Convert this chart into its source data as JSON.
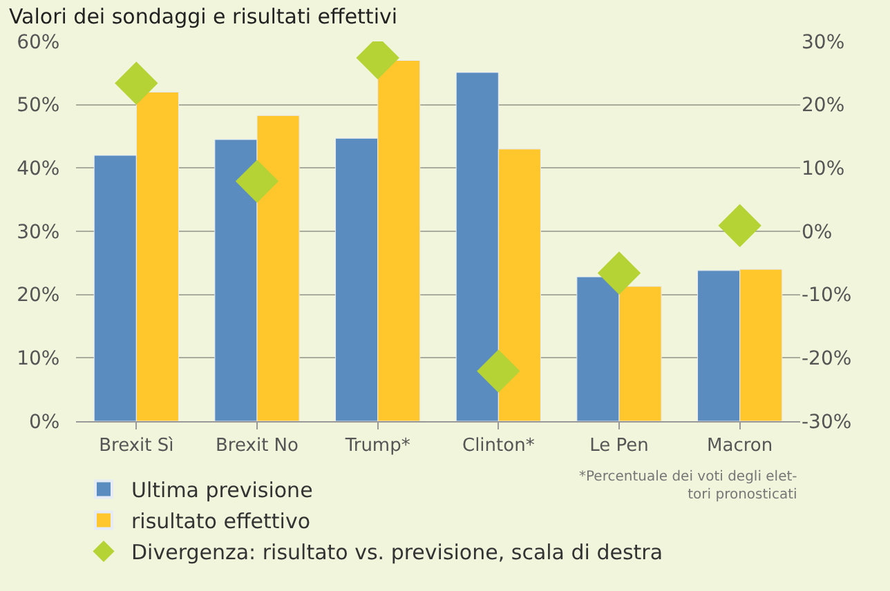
{
  "chart_data": {
    "type": "bar",
    "title": "Valori dei sondaggi e risultati effettivi",
    "categories": [
      "Brexit Sì",
      "Brexit No",
      "Trump*",
      "Clinton*",
      "Le Pen",
      "Macron"
    ],
    "series": [
      {
        "name": "Ultima previsione",
        "color": "#5b8cc0",
        "values": [
          42,
          44.5,
          44.7,
          55.1,
          22.8,
          23.8
        ]
      },
      {
        "name": "risultato effettivo",
        "color": "#ffc72c",
        "values": [
          52,
          48.3,
          57,
          43,
          21.3,
          24
        ]
      },
      {
        "name": "Divergenza: risultato vs. previsione, scala di destra",
        "type": "scatter",
        "axis": "y2",
        "marker": "diamond",
        "color": "#b5d334",
        "values": [
          23.4,
          7.9,
          27.4,
          -22.1,
          -6.6,
          0.9
        ]
      }
    ],
    "ylim": [
      0,
      60
    ],
    "yticks": [
      {
        "value": 0,
        "label": "0%"
      },
      {
        "value": 10,
        "label": "10%"
      },
      {
        "value": 20,
        "label": "20%"
      },
      {
        "value": 30,
        "label": "30%"
      },
      {
        "value": 40,
        "label": "40%"
      },
      {
        "value": 50,
        "label": "50%"
      },
      {
        "value": 60,
        "label": "60%"
      }
    ],
    "y2lim": [
      -30,
      30
    ],
    "y2ticks": [
      {
        "value": -30,
        "label": "-30%"
      },
      {
        "value": -20,
        "label": "-20%"
      },
      {
        "value": -10,
        "label": "-10%"
      },
      {
        "value": 0,
        "label": "0%"
      },
      {
        "value": 10,
        "label": "10%"
      },
      {
        "value": 20,
        "label": "20%"
      },
      {
        "value": 30,
        "label": "30%"
      }
    ],
    "grid": "y",
    "legend": "bottom left",
    "annotations": [
      "*Percentuale dei voti degli elet-\ntori pronosticati"
    ]
  }
}
